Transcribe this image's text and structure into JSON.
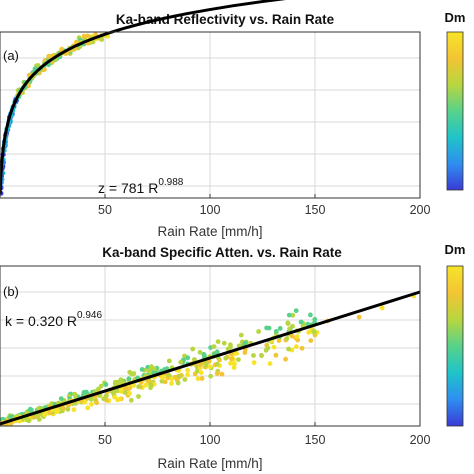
{
  "colors": {
    "fit_line": "#000000",
    "grid": "#d9d9d9",
    "axis": "#333333",
    "colormap": [
      "#3a3bd6",
      "#2f8ef0",
      "#1fc4c9",
      "#58d28a",
      "#b8d640",
      "#f3c433",
      "#f7e42a"
    ]
  },
  "chart_data": [
    {
      "type": "scatter",
      "panel_label": "(a)",
      "title": "Ka-band Reflectivity vs. Rain Rate",
      "xlabel": "Rain Rate [mm/h]",
      "ylabel": "",
      "xlim": [
        0,
        200
      ],
      "x_ticks": [
        50,
        100,
        150,
        200
      ],
      "grid": true,
      "fit": {
        "equation": "z = 781 R",
        "exponent": "0.988",
        "x": [
          0.5,
          1,
          2,
          3,
          5,
          8,
          12,
          20,
          30,
          50,
          75,
          100,
          130,
          160,
          200
        ]
      },
      "colorbar": {
        "label": "Dm"
      }
    },
    {
      "type": "scatter",
      "panel_label": "(b)",
      "title": "Ka-band Specific Atten. vs. Rain Rate",
      "xlabel": "Rain Rate [mm/h]",
      "ylabel": "",
      "xlim": [
        0,
        200
      ],
      "x_ticks": [
        50,
        100,
        150,
        200
      ],
      "grid": true,
      "fit": {
        "equation": "k = 0.320 R",
        "exponent": "0.946",
        "x": [
          0,
          200
        ]
      },
      "colorbar": {
        "label": "Dm"
      }
    }
  ]
}
